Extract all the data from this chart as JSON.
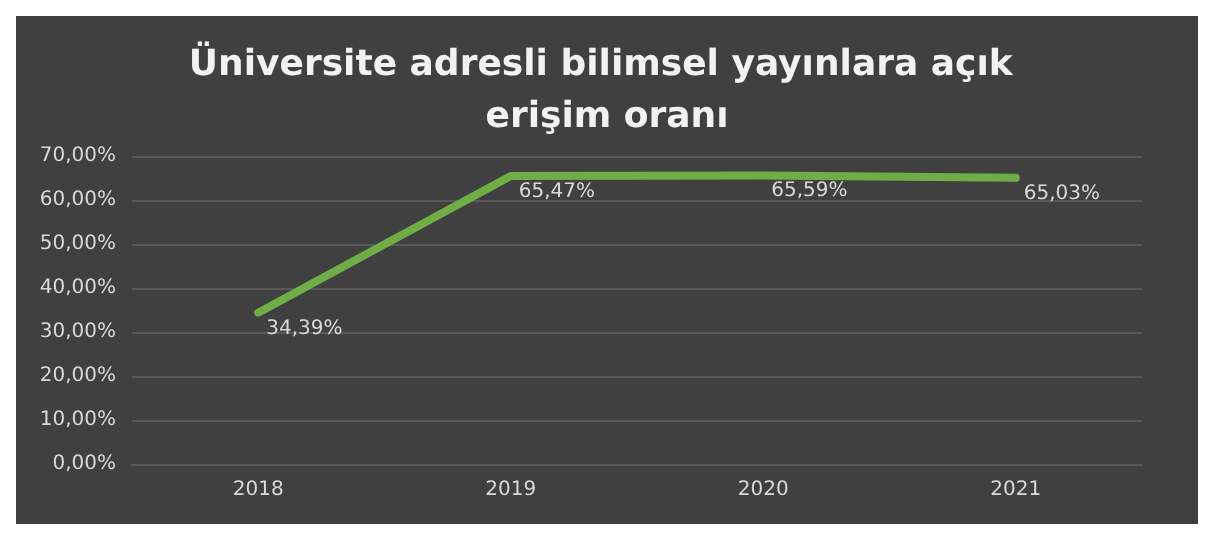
{
  "chart_data": {
    "type": "line",
    "title": "Üniversite adresli bilimsel yayınlara açık erişim oranı",
    "categories": [
      "2018",
      "2019",
      "2020",
      "2021"
    ],
    "series": [
      {
        "color": "#70ad47",
        "values": [
          34.39,
          65.47,
          65.59,
          65.03
        ],
        "value_labels": [
          "34,39%",
          "65,47%",
          "65,59%",
          "65,03%"
        ]
      }
    ],
    "ylim": [
      0,
      70
    ],
    "yticks": [
      {
        "value": 0,
        "label": "0,00%"
      },
      {
        "value": 10,
        "label": "10,00%"
      },
      {
        "value": 20,
        "label": "20,00%"
      },
      {
        "value": 30,
        "label": "30,00%"
      },
      {
        "value": 40,
        "label": "40,00%"
      },
      {
        "value": 50,
        "label": "50,00%"
      },
      {
        "value": 60,
        "label": "60,00%"
      },
      {
        "value": 70,
        "label": "70,00%"
      }
    ],
    "grid": "y",
    "marker": "none",
    "line_style": "solid"
  }
}
